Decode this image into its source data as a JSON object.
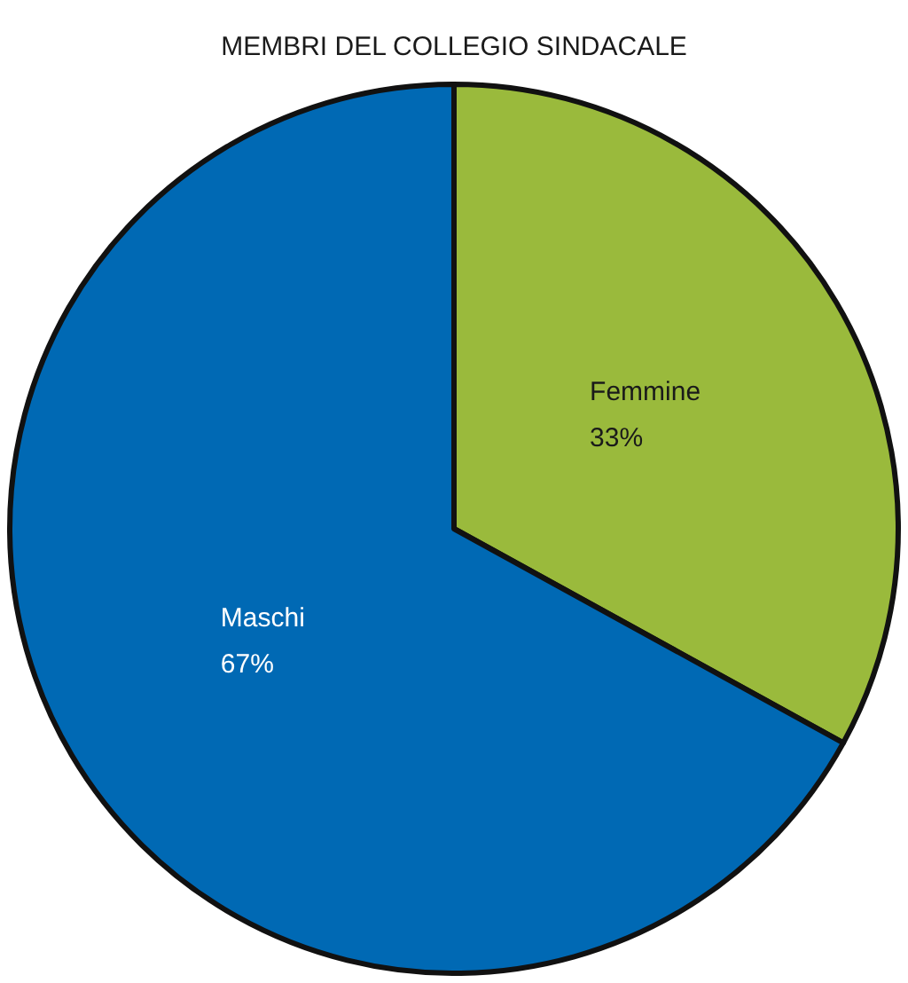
{
  "chart_data": {
    "type": "pie",
    "title": "MEMBRI DEL COLLEGIO SINDACALE",
    "categories": [
      "Femmine",
      "Maschi"
    ],
    "values": [
      33,
      67
    ],
    "colors": [
      "#9aba3c",
      "#0069b4"
    ],
    "value_labels": [
      "33%",
      "67%"
    ],
    "legend": false
  }
}
